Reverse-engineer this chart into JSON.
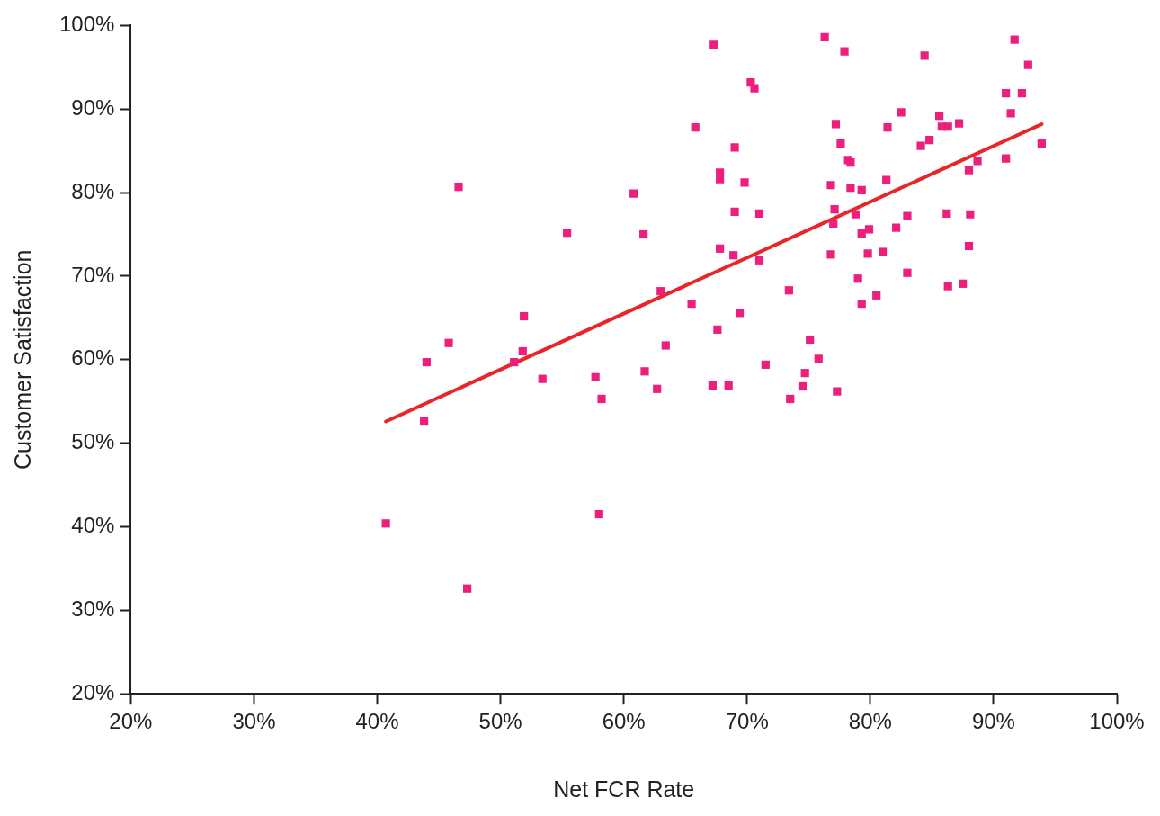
{
  "chart_data": {
    "type": "scatter",
    "xlabel": "Net FCR Rate",
    "ylabel": "Customer Satisfaction",
    "xlim": [
      20,
      100
    ],
    "ylim": [
      20,
      100
    ],
    "xticks": [
      {
        "value": 20,
        "label": "20%"
      },
      {
        "value": 30,
        "label": "30%"
      },
      {
        "value": 40,
        "label": "40%"
      },
      {
        "value": 50,
        "label": "50%"
      },
      {
        "value": 60,
        "label": "60%"
      },
      {
        "value": 70,
        "label": "70%"
      },
      {
        "value": 80,
        "label": "80%"
      },
      {
        "value": 90,
        "label": "90%"
      },
      {
        "value": 100,
        "label": "100%"
      }
    ],
    "yticks": [
      {
        "value": 20,
        "label": "20%"
      },
      {
        "value": 30,
        "label": "30%"
      },
      {
        "value": 40,
        "label": "40%"
      },
      {
        "value": 50,
        "label": "50%"
      },
      {
        "value": 60,
        "label": "60%"
      },
      {
        "value": 70,
        "label": "70%"
      },
      {
        "value": 80,
        "label": "80%"
      },
      {
        "value": 90,
        "label": "90%"
      },
      {
        "value": 100,
        "label": "100%"
      }
    ],
    "grid": false,
    "legend": false,
    "marker": "square",
    "series": [
      {
        "color": "#ec1f7c",
        "x": [
          40.7,
          43.8,
          44.0,
          45.8,
          46.6,
          47.3,
          51.1,
          51.9,
          51.8,
          53.4,
          55.4,
          57.7,
          58.2,
          58.0,
          60.8,
          61.6,
          61.7,
          62.7,
          63.0,
          63.4,
          65.5,
          65.8,
          67.3,
          67.2,
          67.6,
          67.8,
          67.8,
          67.8,
          68.5,
          68.9,
          69.0,
          69.0,
          69.4,
          69.8,
          70.3,
          70.6,
          71.0,
          71.0,
          71.5,
          73.4,
          73.5,
          74.5,
          74.7,
          75.1,
          75.8,
          76.3,
          76.8,
          76.8,
          77.0,
          77.1,
          77.2,
          77.3,
          77.6,
          77.9,
          78.2,
          78.4,
          78.4,
          78.8,
          79.0,
          79.3,
          79.3,
          79.3,
          79.8,
          79.9,
          80.5,
          81.0,
          81.3,
          81.4,
          82.1,
          82.5,
          83.0,
          83.0,
          84.1,
          84.4,
          84.8,
          85.6,
          85.8,
          86.3,
          86.3,
          86.2,
          87.2,
          87.5,
          88.0,
          88.0,
          88.1,
          88.7,
          91.0,
          91.0,
          91.4,
          91.7,
          92.3,
          92.8,
          93.9
        ],
        "values": [
          40.4,
          52.7,
          59.7,
          62.0,
          80.7,
          32.6,
          59.7,
          65.2,
          61.0,
          57.7,
          75.2,
          57.9,
          55.3,
          41.5,
          79.9,
          75.0,
          58.6,
          56.5,
          68.2,
          61.7,
          66.7,
          87.8,
          97.7,
          56.9,
          63.6,
          82.4,
          81.6,
          73.3,
          56.9,
          72.5,
          85.4,
          77.7,
          65.6,
          81.2,
          93.2,
          92.5,
          77.5,
          71.9,
          59.4,
          68.3,
          55.3,
          56.8,
          58.4,
          62.4,
          60.1,
          98.6,
          72.6,
          80.9,
          76.3,
          78.0,
          88.2,
          56.2,
          85.9,
          96.9,
          83.9,
          83.6,
          80.6,
          77.4,
          69.7,
          80.3,
          75.1,
          66.7,
          72.7,
          75.6,
          67.7,
          72.9,
          81.5,
          87.8,
          75.8,
          89.6,
          77.2,
          70.4,
          85.6,
          96.4,
          86.3,
          89.2,
          87.9,
          87.9,
          68.8,
          77.5,
          88.3,
          69.1,
          82.7,
          73.6,
          77.4,
          83.8,
          84.1,
          91.9,
          89.5,
          98.3,
          91.9,
          95.3,
          85.9
        ]
      },
      {
        "type": "line",
        "color": "#e8262a",
        "marker": "none",
        "line_style": "solid",
        "x": [
          40.7,
          93.9
        ],
        "values": [
          52.6,
          88.2
        ]
      }
    ]
  }
}
